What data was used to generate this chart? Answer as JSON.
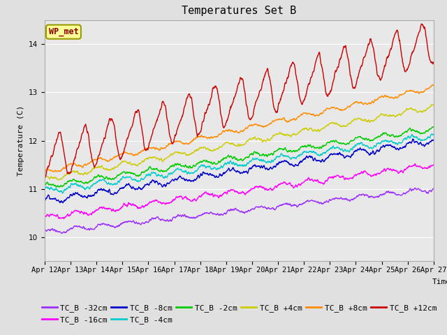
{
  "title": "Temperatures Set B",
  "xlabel": "Time",
  "ylabel": "Temperature (C)",
  "ylim": [
    9.5,
    14.5
  ],
  "xlim_days": [
    0,
    15
  ],
  "x_tick_labels": [
    "Apr 12",
    "Apr 13",
    "Apr 14",
    "Apr 15",
    "Apr 16",
    "Apr 17",
    "Apr 18",
    "Apr 19",
    "Apr 20",
    "Apr 21",
    "Apr 22",
    "Apr 23",
    "Apr 24",
    "Apr 25",
    "Apr 26",
    "Apr 27"
  ],
  "annotation_text": "WP_met",
  "annotation_box_color": "#FFFF99",
  "annotation_text_color": "#8B0000",
  "annotation_edge_color": "#999900",
  "background_color": "#E0E0E0",
  "plot_bg_color": "#E8E8E8",
  "grid_color": "#FFFFFF",
  "series": [
    {
      "label": "TC_B -32cm",
      "color": "#9B30FF",
      "base_start": 10.1,
      "base_end": 11.0,
      "amp": 0.1,
      "diurnal_amp": 0.08
    },
    {
      "label": "TC_B -16cm",
      "color": "#FF00FF",
      "base_start": 10.4,
      "base_end": 11.5,
      "amp": 0.12,
      "diurnal_amp": 0.1
    },
    {
      "label": "TC_B -8cm",
      "color": "#0000CC",
      "base_start": 10.75,
      "base_end": 12.0,
      "amp": 0.13,
      "diurnal_amp": 0.12
    },
    {
      "label": "TC_B -4cm",
      "color": "#00CCCC",
      "base_start": 10.95,
      "base_end": 12.1,
      "amp": 0.12,
      "diurnal_amp": 0.11
    },
    {
      "label": "TC_B -2cm",
      "color": "#00CC00",
      "base_start": 11.05,
      "base_end": 12.25,
      "amp": 0.11,
      "diurnal_amp": 0.1
    },
    {
      "label": "TC_B +4cm",
      "color": "#CCCC00",
      "base_start": 11.2,
      "base_end": 12.7,
      "amp": 0.1,
      "diurnal_amp": 0.1
    },
    {
      "label": "TC_B +8cm",
      "color": "#FF8C00",
      "base_start": 11.35,
      "base_end": 13.1,
      "amp": 0.09,
      "diurnal_amp": 0.09
    },
    {
      "label": "TC_B +12cm",
      "color": "#CC0000",
      "base_start": 11.6,
      "base_end": 14.05,
      "amp": 0.35,
      "diurnal_amp": 0.4
    }
  ],
  "n_points": 1440,
  "title_fontsize": 11,
  "label_fontsize": 8,
  "tick_fontsize": 7.5,
  "legend_fontsize": 8
}
